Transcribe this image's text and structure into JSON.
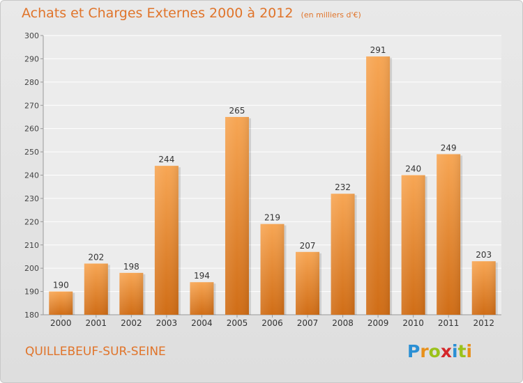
{
  "header": {
    "title": "Achats et Charges Externes 2000 à 2012",
    "unit": "(en milliers d'€)"
  },
  "footer": {
    "commune": "QUILLEBEUF-SUR-SEINE",
    "logo_text": "Proxiti",
    "logo_colors": [
      "#2a8fd4",
      "#e8901a",
      "#9ac21a",
      "#d4262a",
      "#2a8fd4",
      "#9ac21a",
      "#e8901a"
    ]
  },
  "chart_data": {
    "type": "bar",
    "title": "Achats et Charges Externes 2000 à 2012",
    "subtitle": "(en milliers d'€)",
    "xlabel": "",
    "ylabel": "",
    "categories": [
      "2000",
      "2001",
      "2002",
      "2003",
      "2004",
      "2005",
      "2006",
      "2007",
      "2008",
      "2009",
      "2010",
      "2011",
      "2012"
    ],
    "values": [
      190,
      202,
      198,
      244,
      194,
      265,
      219,
      207,
      232,
      291,
      240,
      249,
      203
    ],
    "ylim": [
      180,
      300
    ],
    "yticks": [
      180,
      190,
      200,
      210,
      220,
      230,
      240,
      250,
      260,
      270,
      280,
      290,
      300
    ],
    "grid": true,
    "legend": "none",
    "bar_color": "#e8882e",
    "text_color": "#e0742a"
  }
}
